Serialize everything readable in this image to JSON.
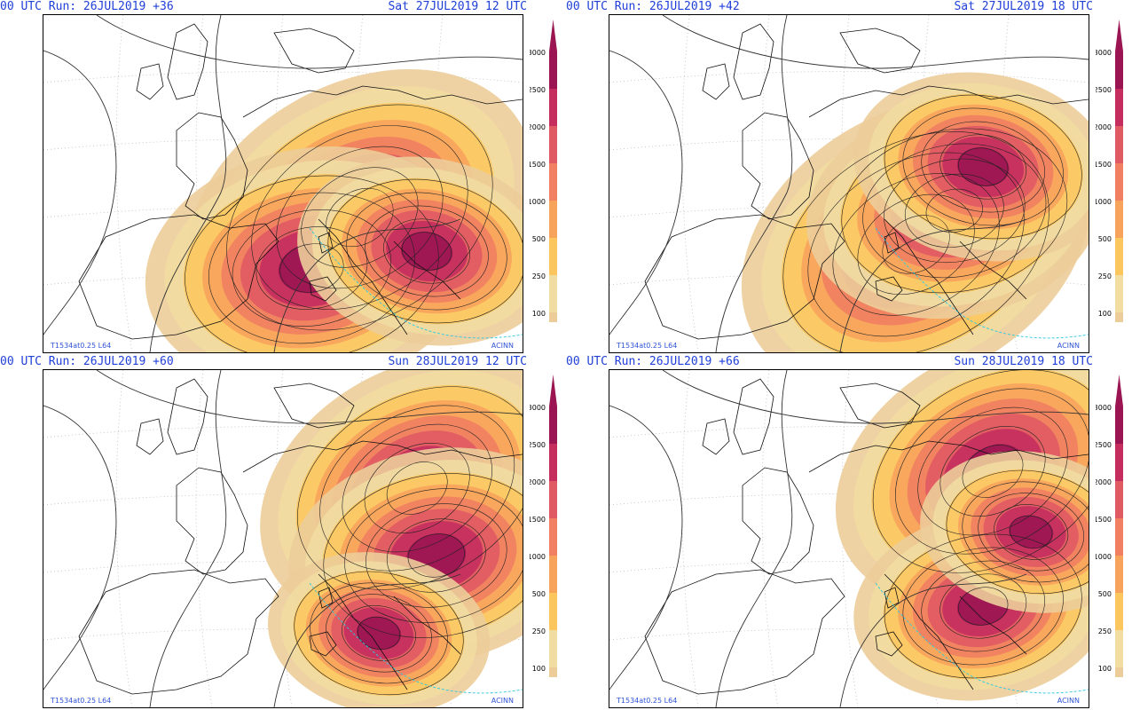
{
  "panels": [
    {
      "run": "00 UTC Run: 26JUL2019 +36",
      "valid": "Sat 27JUL2019 12 UTC",
      "hotspots": [
        [
          0.66,
          0.6,
          1.0
        ],
        [
          0.56,
          0.75,
          0.9
        ],
        [
          0.8,
          0.7,
          0.7
        ]
      ]
    },
    {
      "run": "00 UTC Run: 26JUL2019 +42",
      "valid": "Sat 27JUL2019 18 UTC",
      "hotspots": [
        [
          0.64,
          0.68,
          1.0
        ],
        [
          0.72,
          0.58,
          0.8
        ],
        [
          0.78,
          0.45,
          0.7
        ]
      ]
    },
    {
      "run": "00 UTC Run: 26JUL2019 +60",
      "valid": "Sun 28JUL2019 12 UTC",
      "hotspots": [
        [
          0.78,
          0.35,
          0.9
        ],
        [
          0.82,
          0.55,
          0.8
        ],
        [
          0.7,
          0.78,
          0.6
        ]
      ]
    },
    {
      "run": "00 UTC Run: 26JUL2019 +66",
      "valid": "Sun 28JUL2019 18 UTC",
      "hotspots": [
        [
          0.8,
          0.3,
          0.9
        ],
        [
          0.78,
          0.7,
          0.7
        ],
        [
          0.88,
          0.48,
          0.6
        ]
      ]
    }
  ],
  "stamp_left": "T1534at0.25 L64",
  "stamp_right": "ACINN",
  "colorbar": {
    "levels": [
      "3000",
      "2500",
      "2000",
      "1500",
      "1000",
      "500",
      "250",
      "100"
    ],
    "colors": [
      "#9a1552",
      "#c42d5e",
      "#e05a63",
      "#f08061",
      "#f8a35c",
      "#fcc65e",
      "#f1dca1",
      "#eccd9a"
    ]
  }
}
